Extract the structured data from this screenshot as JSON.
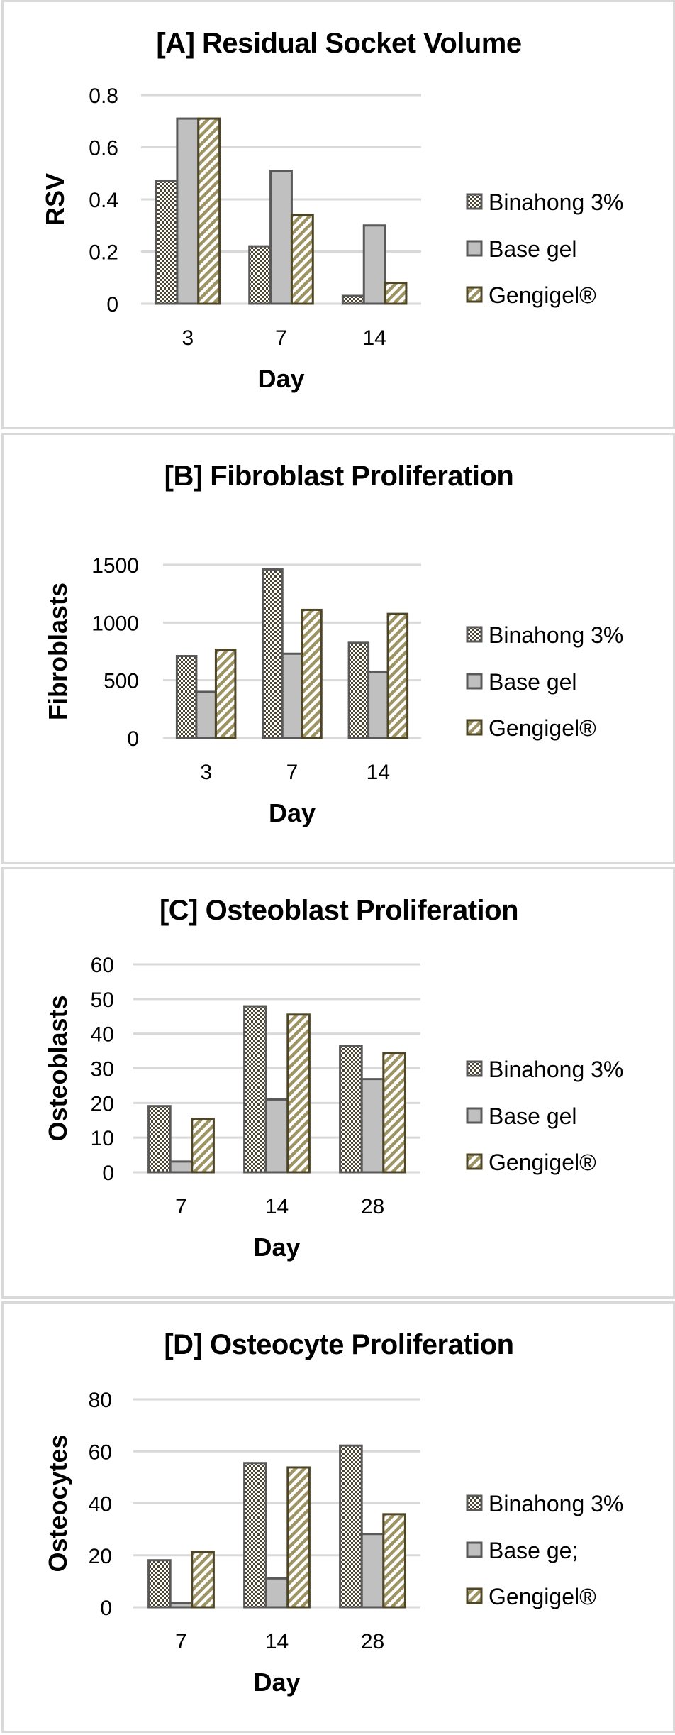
{
  "colors": {
    "panel_border": "#d9d9d9",
    "gridline": "#d9d9d9",
    "binahong_pattern": "#4b4531",
    "binahong_border": "#595959",
    "base_gel_fill": "#c0c0c0",
    "base_gel_border": "#595959",
    "gengigel_pattern": "#9e9463",
    "gengigel_border": "#4d4526"
  },
  "chart_data": [
    {
      "id": "A",
      "type": "bar",
      "title": "[A] Residual Socket Volume",
      "xlabel": "Day",
      "ylabel": "RSV",
      "categories": [
        "3",
        "7",
        "14"
      ],
      "ylim": [
        0,
        0.8
      ],
      "yticks": [
        0,
        0.2,
        0.4,
        0.6,
        0.8
      ],
      "ytick_labels": [
        "0",
        "0.2",
        "0.4",
        "0.6",
        "0.8"
      ],
      "grid": true,
      "legend_position": "right",
      "series": [
        {
          "name": "Binahong 3%",
          "values": [
            0.47,
            0.22,
            0.03
          ]
        },
        {
          "name": "Base gel",
          "values": [
            0.71,
            0.51,
            0.3
          ]
        },
        {
          "name": "Gengigel®",
          "values": [
            0.71,
            0.34,
            0.08
          ]
        }
      ]
    },
    {
      "id": "B",
      "type": "bar",
      "title": "[B] Fibroblast Proliferation",
      "xlabel": "Day",
      "ylabel": "Fibroblasts",
      "categories": [
        "3",
        "7",
        "14"
      ],
      "ylim": [
        0,
        1500
      ],
      "yticks": [
        0,
        500,
        1000,
        1500
      ],
      "ytick_labels": [
        "0",
        "500",
        "1000",
        "1500"
      ],
      "grid": true,
      "legend_position": "right",
      "series": [
        {
          "name": "Binahong 3%",
          "values": [
            710,
            1460,
            825
          ]
        },
        {
          "name": "Base gel",
          "values": [
            400,
            730,
            575
          ]
        },
        {
          "name": "Gengigel®",
          "values": [
            765,
            1110,
            1075
          ]
        }
      ]
    },
    {
      "id": "C",
      "type": "bar",
      "title": "[C] Osteoblast Proliferation",
      "xlabel": "Day",
      "ylabel": "Osteoblasts",
      "categories": [
        "7",
        "14",
        "28"
      ],
      "ylim": [
        0,
        60
      ],
      "yticks": [
        0,
        10,
        20,
        30,
        40,
        50,
        60
      ],
      "ytick_labels": [
        "0",
        "10",
        "20",
        "30",
        "40",
        "50",
        "60"
      ],
      "grid": true,
      "legend_position": "right",
      "series": [
        {
          "name": "Binahong 3%",
          "values": [
            19.1,
            47.9,
            36.4
          ]
        },
        {
          "name": "Base gel",
          "values": [
            3.1,
            21.0,
            26.9
          ]
        },
        {
          "name": "Gengigel®",
          "values": [
            15.4,
            45.5,
            34.4
          ]
        }
      ]
    },
    {
      "id": "D",
      "type": "bar",
      "title": "[D] Osteocyte Proliferation",
      "xlabel": "Day",
      "ylabel": "Osteocytes",
      "categories": [
        "7",
        "14",
        "28"
      ],
      "ylim": [
        0,
        80
      ],
      "yticks": [
        0,
        20,
        40,
        60,
        80
      ],
      "ytick_labels": [
        "0",
        "20",
        "40",
        "60",
        "80"
      ],
      "grid": true,
      "legend_position": "right",
      "series": [
        {
          "name": "Binahong 3%",
          "values": [
            18.1,
            55.5,
            62.2
          ]
        },
        {
          "name": "Base ge;",
          "values": [
            1.7,
            11.1,
            28.2
          ]
        },
        {
          "name": "Gengigel®",
          "values": [
            21.3,
            53.8,
            35.8
          ]
        }
      ]
    }
  ]
}
